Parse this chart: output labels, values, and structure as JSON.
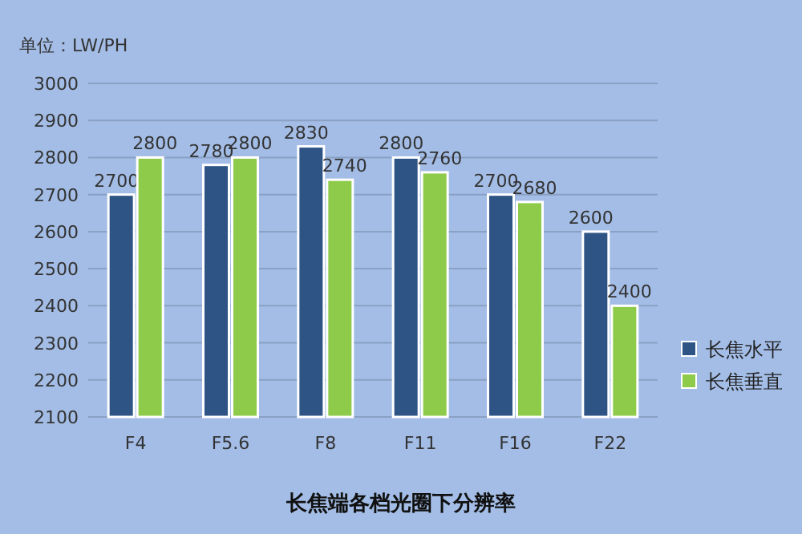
{
  "chart_data": {
    "type": "bar",
    "title": "长焦端各档光圈下分辨率",
    "ylabel": "单位：LW/PH",
    "categories": [
      "F4",
      "F5.6",
      "F8",
      "F11",
      "F16",
      "F22"
    ],
    "series": [
      {
        "name": "长焦水平",
        "color": "#2e5486",
        "values": [
          2700,
          2780,
          2830,
          2800,
          2700,
          2600
        ]
      },
      {
        "name": "长焦垂直",
        "color": "#8ecb4a",
        "values": [
          2800,
          2800,
          2740,
          2760,
          2680,
          2400
        ]
      }
    ],
    "ylim": [
      2100,
      3000
    ],
    "yticks": [
      2100,
      2200,
      2300,
      2400,
      2500,
      2600,
      2700,
      2800,
      2900,
      3000
    ],
    "grid": "y",
    "legend": "right",
    "data_labels": true
  }
}
